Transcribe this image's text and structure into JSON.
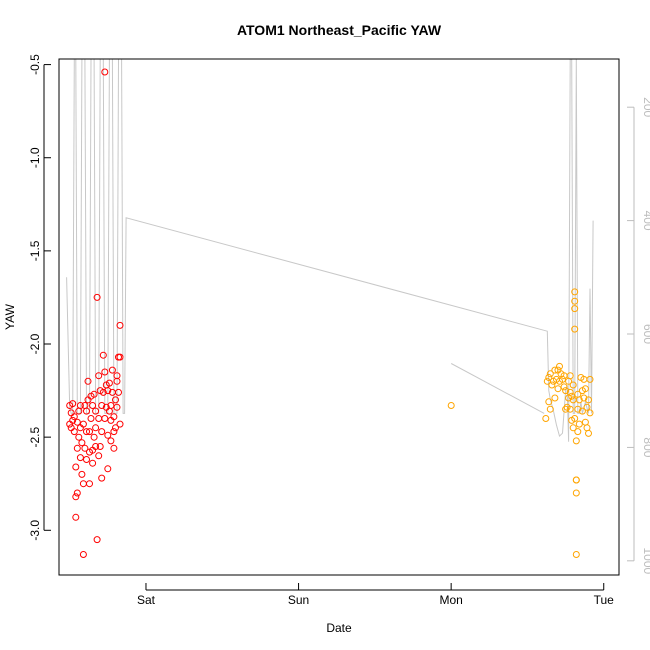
{
  "chart_data": {
    "type": "scatter",
    "title": "ATOM1 Northeast_Pacific YAW",
    "xlabel": "Date",
    "ylabel": "YAW",
    "x_ticks": [
      "Sat",
      "Sun",
      "Mon",
      "Tue"
    ],
    "x_tick_values": [
      3.0,
      4.0,
      5.0,
      6.0
    ],
    "xlim": [
      2.43,
      6.1
    ],
    "ylim": [
      -3.24,
      -0.47
    ],
    "y_ticks": [
      -0.5,
      -1.0,
      -1.5,
      -2.0,
      -2.5,
      -3.0
    ],
    "y_tick_labels": [
      "-0.5",
      "-1.0",
      "-1.5",
      "-2.0",
      "-2.5",
      "-3.0"
    ],
    "right_axis": {
      "label": "",
      "ticks": [
        200,
        400,
        600,
        800,
        1000
      ],
      "tick_labels": [
        "200",
        "400",
        "600",
        "800",
        "1000"
      ],
      "range": [
        115,
        1025
      ],
      "inverted": true,
      "color": "#bdbdbd"
    },
    "series": [
      {
        "color": "#ff0000",
        "marker": "open-circle",
        "points": [
          [
            2.5,
            -2.43
          ],
          [
            2.5,
            -2.33
          ],
          [
            2.51,
            -2.45
          ],
          [
            2.51,
            -2.37
          ],
          [
            2.52,
            -2.41
          ],
          [
            2.52,
            -2.32
          ],
          [
            2.53,
            -2.47
          ],
          [
            2.53,
            -2.39
          ],
          [
            2.54,
            -2.66
          ],
          [
            2.54,
            -2.82
          ],
          [
            2.54,
            -2.93
          ],
          [
            2.55,
            -2.8
          ],
          [
            2.55,
            -2.42
          ],
          [
            2.55,
            -2.56
          ],
          [
            2.56,
            -2.5
          ],
          [
            2.56,
            -2.36
          ],
          [
            2.57,
            -2.61
          ],
          [
            2.57,
            -2.45
          ],
          [
            2.57,
            -2.33
          ],
          [
            2.58,
            -2.7
          ],
          [
            2.58,
            -2.53
          ],
          [
            2.59,
            -2.75
          ],
          [
            2.59,
            -2.43
          ],
          [
            2.59,
            -3.13
          ],
          [
            2.6,
            -2.56
          ],
          [
            2.6,
            -2.33
          ],
          [
            2.61,
            -2.47
          ],
          [
            2.61,
            -2.62
          ],
          [
            2.61,
            -2.36
          ],
          [
            2.62,
            -2.3
          ],
          [
            2.62,
            -2.2
          ],
          [
            2.63,
            -2.58
          ],
          [
            2.63,
            -2.47
          ],
          [
            2.63,
            -2.75
          ],
          [
            2.64,
            -2.4
          ],
          [
            2.64,
            -2.28
          ],
          [
            2.65,
            -2.57
          ],
          [
            2.65,
            -2.33
          ],
          [
            2.65,
            -2.64
          ],
          [
            2.66,
            -2.27
          ],
          [
            2.66,
            -2.5
          ],
          [
            2.67,
            -2.45
          ],
          [
            2.67,
            -2.36
          ],
          [
            2.67,
            -2.55
          ],
          [
            2.68,
            -1.75
          ],
          [
            2.68,
            -3.05
          ],
          [
            2.69,
            -2.6
          ],
          [
            2.69,
            -2.4
          ],
          [
            2.69,
            -2.17
          ],
          [
            2.7,
            -2.25
          ],
          [
            2.7,
            -2.55
          ],
          [
            2.71,
            -2.72
          ],
          [
            2.71,
            -2.33
          ],
          [
            2.71,
            -2.47
          ],
          [
            2.72,
            -2.06
          ],
          [
            2.72,
            -2.26
          ],
          [
            2.73,
            -2.4
          ],
          [
            2.73,
            -2.15
          ],
          [
            2.73,
            -0.54
          ],
          [
            2.74,
            -2.22
          ],
          [
            2.74,
            -2.34
          ],
          [
            2.75,
            -2.49
          ],
          [
            2.75,
            -2.67
          ],
          [
            2.75,
            -2.25
          ],
          [
            2.76,
            -2.36
          ],
          [
            2.76,
            -2.21
          ],
          [
            2.77,
            -2.52
          ],
          [
            2.77,
            -2.41
          ],
          [
            2.77,
            -2.33
          ],
          [
            2.78,
            -2.14
          ],
          [
            2.78,
            -2.26
          ],
          [
            2.79,
            -2.47
          ],
          [
            2.79,
            -2.39
          ],
          [
            2.79,
            -2.56
          ],
          [
            2.8,
            -2.45
          ],
          [
            2.8,
            -2.3
          ],
          [
            2.81,
            -2.2
          ],
          [
            2.81,
            -2.34
          ],
          [
            2.81,
            -2.17
          ],
          [
            2.82,
            -2.07
          ],
          [
            2.82,
            -2.26
          ],
          [
            2.83,
            -1.9
          ],
          [
            2.83,
            -2.07
          ],
          [
            2.83,
            -2.43
          ]
        ]
      },
      {
        "color": "#ffa500",
        "marker": "open-circle",
        "points": [
          [
            5.0,
            -2.33
          ],
          [
            5.62,
            -2.4
          ],
          [
            5.63,
            -2.2
          ],
          [
            5.64,
            -2.31
          ],
          [
            5.64,
            -2.18
          ],
          [
            5.65,
            -2.35
          ],
          [
            5.65,
            -2.16
          ],
          [
            5.66,
            -2.22
          ],
          [
            5.67,
            -2.2
          ],
          [
            5.68,
            -2.14
          ],
          [
            5.68,
            -2.29
          ],
          [
            5.69,
            -2.19
          ],
          [
            5.7,
            -2.14
          ],
          [
            5.7,
            -2.24
          ],
          [
            5.71,
            -2.2
          ],
          [
            5.71,
            -2.12
          ],
          [
            5.72,
            -2.16
          ],
          [
            5.73,
            -2.19
          ],
          [
            5.74,
            -2.23
          ],
          [
            5.74,
            -2.17
          ],
          [
            5.75,
            -2.35
          ],
          [
            5.75,
            -2.25
          ],
          [
            5.76,
            -2.34
          ],
          [
            5.77,
            -2.2
          ],
          [
            5.77,
            -2.29
          ],
          [
            5.78,
            -2.17
          ],
          [
            5.78,
            -2.26
          ],
          [
            5.78,
            -2.35
          ],
          [
            5.79,
            -2.41
          ],
          [
            5.79,
            -2.28
          ],
          [
            5.8,
            -2.3
          ],
          [
            5.8,
            -2.22
          ],
          [
            5.8,
            -2.45
          ],
          [
            5.81,
            -1.72
          ],
          [
            5.81,
            -1.77
          ],
          [
            5.81,
            -1.81
          ],
          [
            5.81,
            -1.92
          ],
          [
            5.81,
            -2.4
          ],
          [
            5.82,
            -2.73
          ],
          [
            5.82,
            -2.8
          ],
          [
            5.82,
            -3.13
          ],
          [
            5.82,
            -2.73
          ],
          [
            5.82,
            -2.52
          ],
          [
            5.83,
            -2.47
          ],
          [
            5.83,
            -2.35
          ],
          [
            5.83,
            -2.27
          ],
          [
            5.84,
            -2.43
          ],
          [
            5.84,
            -2.3
          ],
          [
            5.85,
            -2.18
          ],
          [
            5.86,
            -2.25
          ],
          [
            5.86,
            -2.36
          ],
          [
            5.87,
            -2.29
          ],
          [
            5.87,
            -2.19
          ],
          [
            5.88,
            -2.24
          ],
          [
            5.88,
            -2.42
          ],
          [
            5.89,
            -2.34
          ],
          [
            5.89,
            -2.45
          ],
          [
            5.9,
            -2.3
          ],
          [
            5.9,
            -2.48
          ],
          [
            5.91,
            -2.19
          ],
          [
            5.91,
            -2.37
          ]
        ]
      }
    ],
    "depth_line": {
      "color": "#c8c8c8",
      "segments": [
        [
          [
            2.48,
            500
          ],
          [
            2.5,
            730
          ],
          [
            2.51,
            740
          ],
          [
            2.52,
            740
          ],
          [
            2.53,
            115
          ],
          [
            2.54,
            115
          ],
          [
            2.55,
            740
          ],
          [
            2.57,
            740
          ],
          [
            2.58,
            115
          ],
          [
            2.6,
            115
          ],
          [
            2.61,
            740
          ],
          [
            2.63,
            740
          ],
          [
            2.64,
            115
          ],
          [
            2.66,
            115
          ],
          [
            2.67,
            740
          ],
          [
            2.69,
            740
          ],
          [
            2.7,
            115
          ],
          [
            2.72,
            115
          ],
          [
            2.73,
            740
          ],
          [
            2.75,
            740
          ],
          [
            2.76,
            115
          ],
          [
            2.78,
            115
          ],
          [
            2.79,
            740
          ],
          [
            2.81,
            740
          ],
          [
            2.82,
            115
          ],
          [
            2.84,
            115
          ],
          [
            2.85,
            740
          ],
          [
            2.86,
            740
          ],
          [
            2.87,
            395
          ],
          [
            5.63,
            595
          ],
          [
            5.64,
            700
          ],
          [
            5.65,
            715
          ],
          [
            5.67,
            735
          ],
          [
            5.69,
            760
          ],
          [
            5.71,
            780
          ],
          [
            5.73,
            775
          ],
          [
            5.75,
            700
          ],
          [
            5.76,
            690
          ],
          [
            5.77,
            790
          ],
          [
            5.78,
            115
          ],
          [
            5.79,
            115
          ],
          [
            5.8,
            740
          ],
          [
            5.81,
            740
          ],
          [
            5.82,
            115
          ],
          [
            5.83,
            740
          ],
          [
            5.84,
            740
          ],
          [
            5.85,
            720
          ],
          [
            5.86,
            740
          ],
          [
            5.88,
            720
          ],
          [
            5.9,
            740
          ],
          [
            5.91,
            520
          ],
          [
            5.92,
            740
          ],
          [
            5.93,
            400
          ]
        ],
        [
          [
            5.0,
            652
          ],
          [
            5.61,
            740
          ]
        ]
      ]
    }
  }
}
